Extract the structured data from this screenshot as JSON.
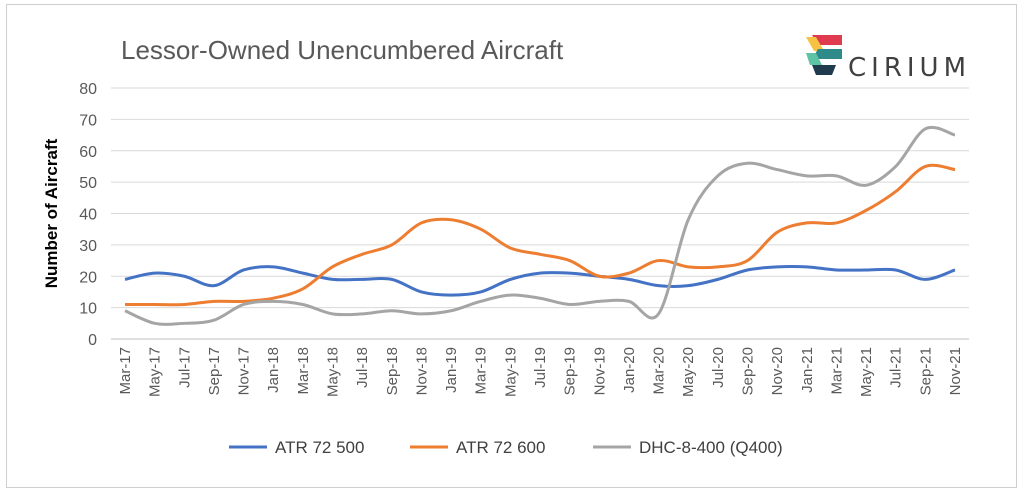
{
  "chart_data": {
    "type": "line",
    "title": "Lessor-Owned Unencumbered Aircraft",
    "ylabel": "Number of Aircraft",
    "xlabel": "",
    "ylim": [
      0,
      80
    ],
    "yticks": [
      0,
      10,
      20,
      30,
      40,
      50,
      60,
      70,
      80
    ],
    "grid": "horizontal",
    "legend": "bottom",
    "categories": [
      "Mar-17",
      "May-17",
      "Jul-17",
      "Sep-17",
      "Nov-17",
      "Jan-18",
      "Mar-18",
      "May-18",
      "Jul-18",
      "Sep-18",
      "Nov-18",
      "Jan-19",
      "Mar-19",
      "May-19",
      "Jul-19",
      "Sep-19",
      "Nov-19",
      "Jan-20",
      "Mar-20",
      "May-20",
      "Jul-20",
      "Sep-20",
      "Nov-20",
      "Jan-21",
      "Mar-21",
      "May-21",
      "Jul-21",
      "Sep-21",
      "Nov-21"
    ],
    "series": [
      {
        "name": "ATR 72 500",
        "color": "#4472C4",
        "values": [
          19,
          21,
          20,
          17,
          22,
          23,
          21,
          19,
          19,
          19,
          15,
          14,
          15,
          19,
          21,
          21,
          20,
          19,
          17,
          17,
          19,
          22,
          23,
          23,
          22,
          22,
          22,
          19,
          22
        ]
      },
      {
        "name": "ATR 72 600",
        "color": "#ED7D31",
        "values": [
          11,
          11,
          11,
          12,
          12,
          13,
          16,
          23,
          27,
          30,
          37,
          38,
          35,
          29,
          27,
          25,
          20,
          21,
          25,
          23,
          23,
          25,
          34,
          37,
          37,
          41,
          47,
          55,
          54
        ]
      },
      {
        "name": "DHC-8-400 (Q400)",
        "color": "#A5A5A5",
        "values": [
          9,
          5,
          5,
          6,
          11,
          12,
          11,
          8,
          8,
          9,
          8,
          9,
          12,
          14,
          13,
          11,
          12,
          12,
          8,
          38,
          52,
          56,
          54,
          52,
          52,
          49,
          55,
          67,
          65
        ]
      }
    ]
  },
  "brand": {
    "name": "CIRIUM",
    "colors": [
      "#E03A4E",
      "#F5C242",
      "#2E8B89",
      "#5FC3A6",
      "#1F3B4D"
    ]
  }
}
